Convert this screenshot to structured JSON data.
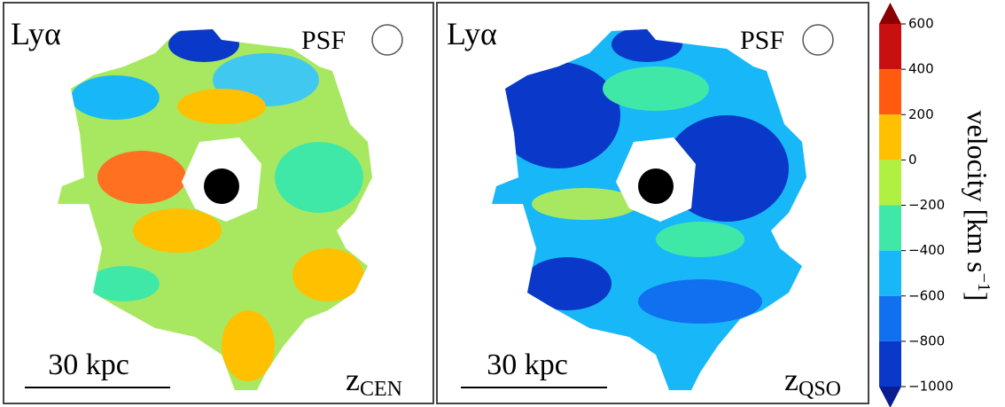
{
  "chart_data": {
    "type": "colormap",
    "panels": [
      {
        "label": "Lyα",
        "psf": "PSF",
        "scale_bar": "30 kpc",
        "z": "z",
        "z_sub": "CEN"
      },
      {
        "label": "Lyα",
        "psf": "PSF",
        "scale_bar": "30 kpc",
        "z": "z",
        "z_sub": "QSO"
      }
    ],
    "colorbar": {
      "label": "velocity [km s",
      "label_sup": "−1",
      "label_end": "]",
      "lim": [
        -1000,
        600
      ],
      "ticks": [
        {
          "value": 600,
          "label": "600"
        },
        {
          "value": 400,
          "label": "400"
        },
        {
          "value": 200,
          "label": "200"
        },
        {
          "value": 0,
          "label": "0"
        },
        {
          "value": -200,
          "label": "−200"
        },
        {
          "value": -400,
          "label": "−400"
        },
        {
          "value": -600,
          "label": "−600"
        },
        {
          "value": -800,
          "label": "−800"
        },
        {
          "value": -1000,
          "label": "−1000"
        }
      ],
      "colors": [
        "#c81010",
        "#ff5a10",
        "#ffc000",
        "#b0f040",
        "#40e8a8",
        "#18b8f8",
        "#1070f0",
        "#0a38c8"
      ],
      "extend_colors": [
        "#8a0000",
        "#081e90"
      ]
    }
  }
}
